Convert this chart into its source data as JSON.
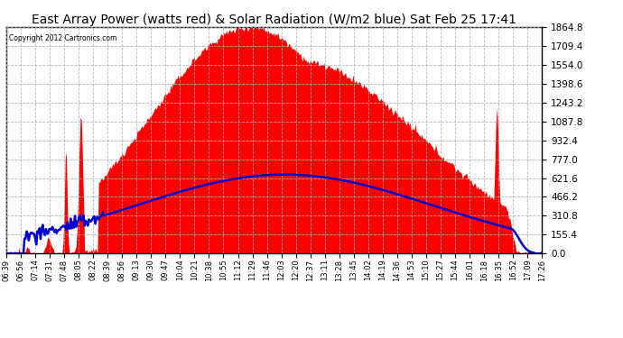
{
  "title": "East Array Power (watts red) & Solar Radiation (W/m2 blue) Sat Feb 25 17:41",
  "copyright": "Copyright 2012 Cartronics.com",
  "title_fontsize": 10,
  "background_color": "#ffffff",
  "plot_bg_color": "#ffffff",
  "yticks": [
    0.0,
    155.4,
    310.8,
    466.2,
    621.6,
    777.0,
    932.4,
    1087.8,
    1243.2,
    1398.6,
    1554.0,
    1709.4,
    1864.8
  ],
  "ylim": [
    0,
    1864.8
  ],
  "x_labels": [
    "06:39",
    "06:56",
    "07:14",
    "07:31",
    "07:48",
    "08:05",
    "08:22",
    "08:39",
    "08:56",
    "09:13",
    "09:30",
    "09:47",
    "10:04",
    "10:21",
    "10:38",
    "10:55",
    "11:12",
    "11:29",
    "11:46",
    "12:03",
    "12:20",
    "12:37",
    "13:11",
    "13:28",
    "13:45",
    "14:02",
    "14:19",
    "14:36",
    "14:53",
    "15:10",
    "15:27",
    "15:44",
    "16:01",
    "16:18",
    "16:35",
    "16:52",
    "17:09",
    "17:26"
  ],
  "grid_color": "#b0b0b0",
  "red_color": "#ff0000",
  "blue_color": "#0000cc",
  "fill_alpha": 1.0,
  "line_width": 1.8,
  "power_peak": 1864.8,
  "radiation_peak": 650
}
